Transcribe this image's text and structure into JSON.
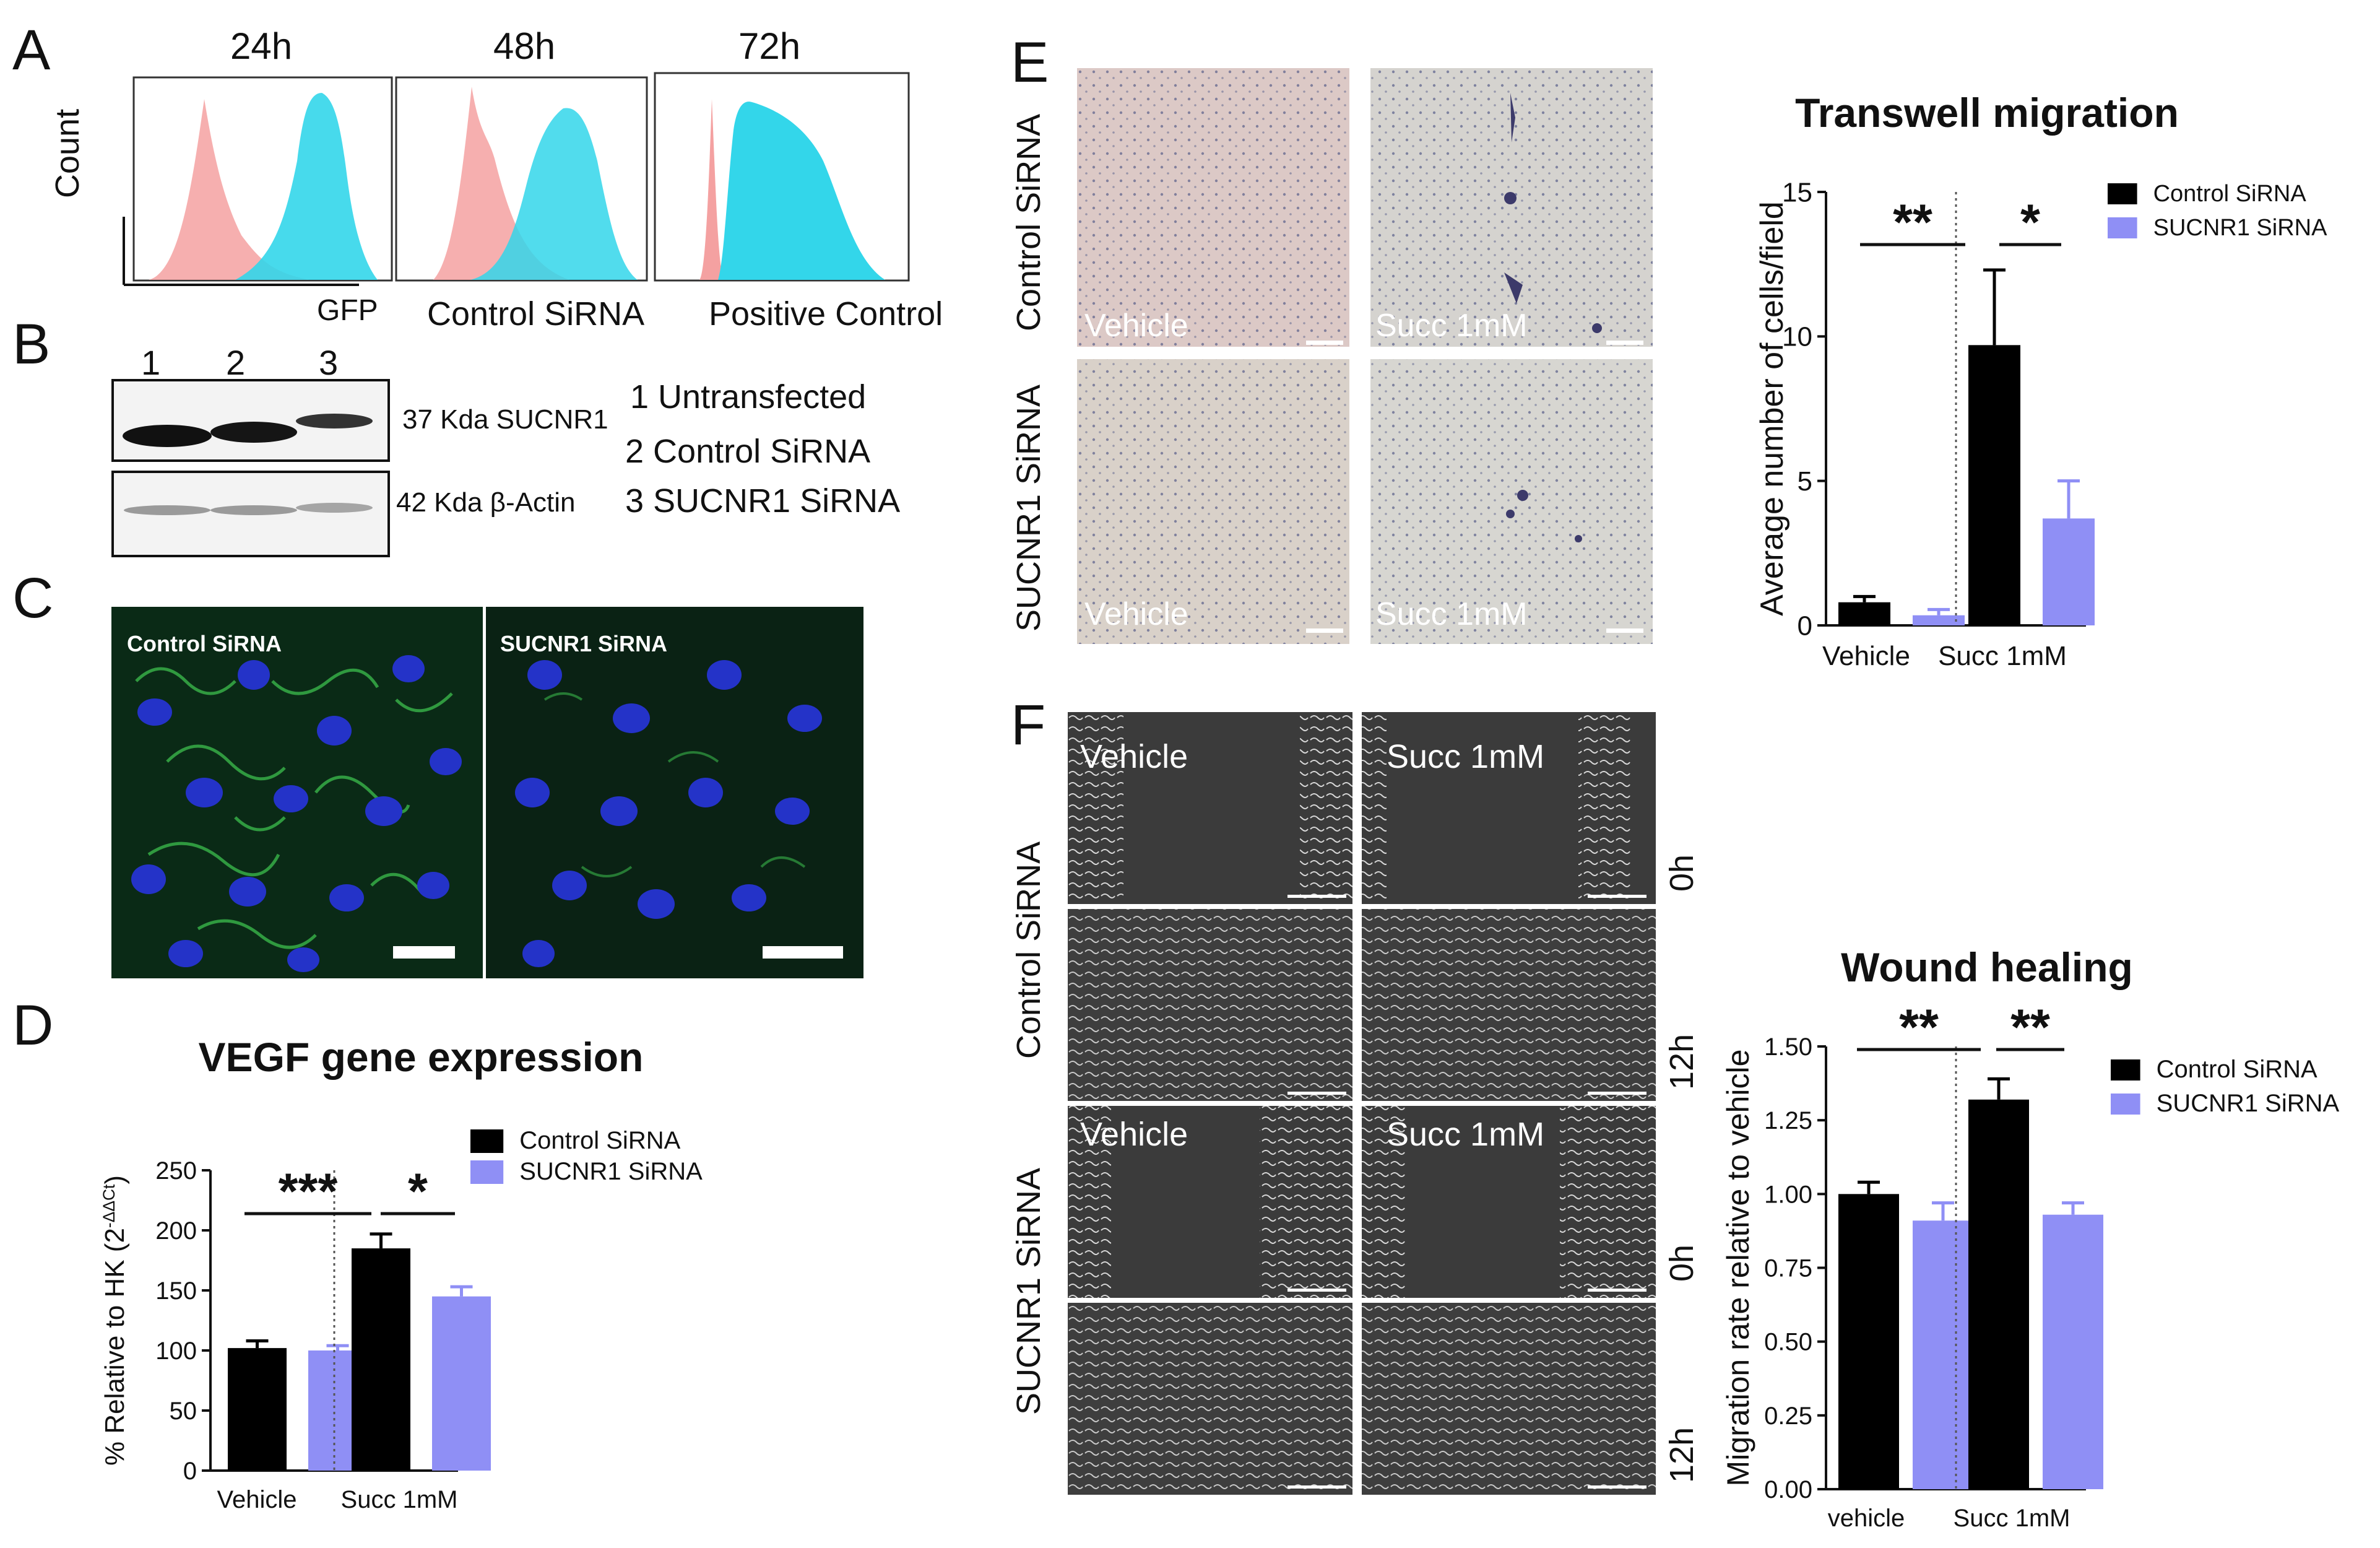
{
  "panels": {
    "A": {
      "letter": "A",
      "ylabel": "Count",
      "xlabel": "GFP",
      "timepoints": [
        "24h",
        "48h",
        "72h"
      ],
      "legend": [
        {
          "name": "Control SiRNA",
          "color": "#f4a1a1"
        },
        {
          "name": "Positive Control",
          "color": "#33d6ea"
        }
      ]
    },
    "B": {
      "letter": "B",
      "lane_numbers": [
        "1",
        "2",
        "3"
      ],
      "band_labels": [
        "37 Kda SUCNR1",
        "42 Kda β-Actin"
      ],
      "lane_key": [
        "1 Untransfected",
        "2 Control SiRNA",
        "3 SUCNR1 SiRNA"
      ]
    },
    "C": {
      "letter": "C",
      "image_labels": [
        "Control SiRNA",
        "SUCNR1 SiRNA"
      ]
    },
    "D": {
      "letter": "D"
    },
    "E": {
      "letter": "E",
      "row_labels": [
        "Control SiRNA",
        "SUCNR1 SiRNA"
      ],
      "image_labels": [
        "Vehicle",
        "Succ 1mM",
        "Vehicle",
        "Succ 1mM"
      ]
    },
    "F": {
      "letter": "F",
      "row_labels": [
        "Control SiRNA",
        "SUCNR1 SiRNA"
      ],
      "col_labels": [
        "Vehicle",
        "Succ 1mM",
        "Vehicle",
        "Succ 1mM"
      ],
      "time_labels": [
        "0h",
        "12h",
        "0h",
        "12h"
      ]
    }
  },
  "colors": {
    "control_sirna": "#000000",
    "sucnr1_sirna": "#8f8ff5",
    "flow_control": "#f4a1a1",
    "flow_positive": "#33d6ea"
  },
  "chart_data": [
    {
      "id": "D",
      "type": "bar",
      "title": "VEGF gene expression",
      "ylabel": "% Relative to HK (2",
      "ylabel_sup": "-ΔΔCt",
      "ylabel_close": ")",
      "categories": [
        "Vehicle",
        "Succ 1mM"
      ],
      "ylim": [
        0,
        250
      ],
      "yticks": [
        "0",
        "50",
        "100",
        "150",
        "200",
        "250"
      ],
      "series": [
        {
          "name": "Control SiRNA",
          "values": [
            102,
            185
          ],
          "errors": [
            6,
            12
          ]
        },
        {
          "name": "SUCNR1 SiRNA",
          "values": [
            100,
            145
          ],
          "errors": [
            4,
            8
          ]
        }
      ],
      "significance": [
        "***",
        "*"
      ]
    },
    {
      "id": "E",
      "type": "bar",
      "title": "Transwell migration",
      "ylabel": "Average number of cells/field",
      "categories": [
        "Vehicle",
        "Succ 1mM"
      ],
      "ylim": [
        0,
        15
      ],
      "yticks": [
        "0",
        "5",
        "10",
        "15"
      ],
      "series": [
        {
          "name": "Control SiRNA",
          "values": [
            0.8,
            9.7
          ],
          "errors": [
            0.2,
            2.6
          ]
        },
        {
          "name": "SUCNR1 SiRNA",
          "values": [
            0.35,
            3.7
          ],
          "errors": [
            0.2,
            1.3
          ]
        }
      ],
      "significance": [
        "**",
        "*"
      ]
    },
    {
      "id": "F",
      "type": "bar",
      "title": "Wound healing",
      "ylabel": "Migration rate relative to vehicle",
      "categories": [
        "vehicle",
        "Succ 1mM"
      ],
      "ylim": [
        0,
        1.5
      ],
      "yticks": [
        "0.00",
        "0.25",
        "0.50",
        "0.75",
        "1.00",
        "1.25",
        "1.50"
      ],
      "series": [
        {
          "name": "Control SiRNA",
          "values": [
            1.0,
            1.32
          ],
          "errors": [
            0.04,
            0.07
          ]
        },
        {
          "name": "SUCNR1 SiRNA",
          "values": [
            0.91,
            0.93
          ],
          "errors": [
            0.06,
            0.04
          ]
        }
      ],
      "significance": [
        "**",
        "**"
      ]
    }
  ]
}
